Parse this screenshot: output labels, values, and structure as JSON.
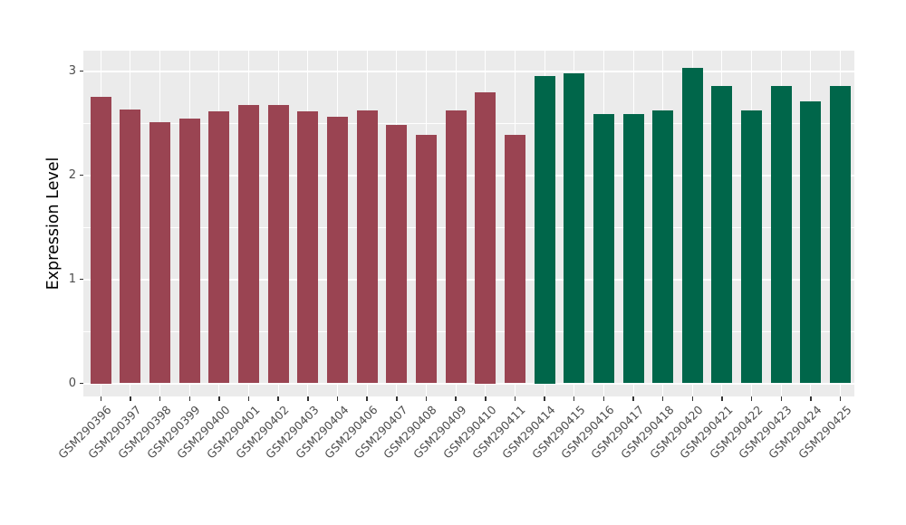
{
  "chart_data": {
    "type": "bar",
    "title": "",
    "xlabel": "",
    "ylabel": "Expression Level",
    "categories": [
      "GSM290396",
      "GSM290397",
      "GSM290398",
      "GSM290399",
      "GSM290400",
      "GSM290401",
      "GSM290402",
      "GSM290403",
      "GSM290404",
      "GSM290406",
      "GSM290407",
      "GSM290408",
      "GSM290409",
      "GSM290410",
      "GSM290411",
      "GSM290414",
      "GSM290415",
      "GSM290416",
      "GSM290417",
      "GSM290418",
      "GSM290420",
      "GSM290421",
      "GSM290422",
      "GSM290423",
      "GSM290424",
      "GSM290425"
    ],
    "values": [
      2.75,
      2.63,
      2.51,
      2.54,
      2.61,
      2.67,
      2.67,
      2.61,
      2.56,
      2.62,
      2.48,
      2.39,
      2.62,
      2.8,
      2.39,
      2.95,
      2.98,
      2.59,
      2.59,
      2.62,
      3.03,
      2.86,
      2.62,
      2.86,
      2.71,
      2.86
    ],
    "bar_group_ids": [
      1,
      1,
      1,
      1,
      1,
      1,
      1,
      1,
      1,
      1,
      1,
      1,
      1,
      1,
      1,
      2,
      2,
      2,
      2,
      2,
      2,
      2,
      2,
      2,
      2,
      2
    ],
    "group_colors": {
      "1": "#9A4452",
      "2": "#00664A"
    },
    "ylim": [
      0,
      3.2
    ],
    "yticks": [
      0,
      1,
      2,
      3
    ],
    "yticks_minor": [
      0.5,
      1.5,
      2.5
    ],
    "grid": "on",
    "legend_position": "none",
    "panel_background": "#EBEBEB",
    "gridline_color": "#FFFFFF",
    "axis_text_color": "#4D4D4D",
    "axis_title_color": "#000000",
    "tick_mark_color": "#333333"
  }
}
